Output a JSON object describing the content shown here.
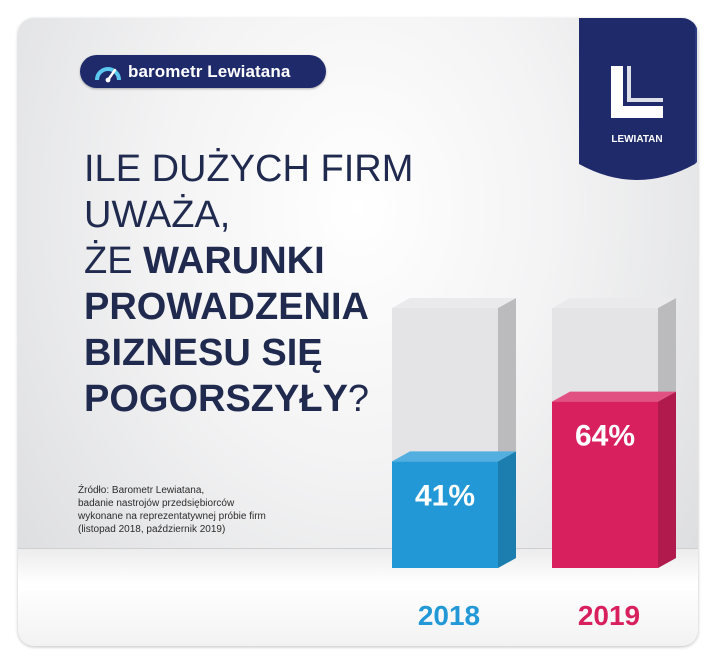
{
  "brand": {
    "pill_label": "barometr Lewiatana",
    "logo_label": "LEWIATAN"
  },
  "headline": {
    "line1": "ILE DUŻYCH FIRM UWAŻA,",
    "line2_prefix": "ŻE ",
    "line2_bold": "WARUNKI",
    "line3": "PROWADZENIA",
    "line4": "BIZNESU SIĘ",
    "line5_bold": "POGORSZYŁY",
    "line5_suffix": "?"
  },
  "source": [
    "Źródło: Barometr Lewiatana,",
    "badanie nastrojów przedsiębiorców",
    "wykonane na reprezentatywnej próbie firm",
    "(listopad 2018, październik 2019)"
  ],
  "colors": {
    "navy": "#1f2a6b",
    "blue": "#2299d6",
    "pink": "#d8205e",
    "grey_bar": "#e4e4e6"
  },
  "chart_data": {
    "type": "bar",
    "categories": [
      "2018",
      "2019"
    ],
    "values": [
      41,
      64
    ],
    "value_labels": [
      "41%",
      "64%"
    ],
    "ylim": [
      0,
      100
    ],
    "category_colors": [
      "#2299d6",
      "#d8205e"
    ]
  }
}
